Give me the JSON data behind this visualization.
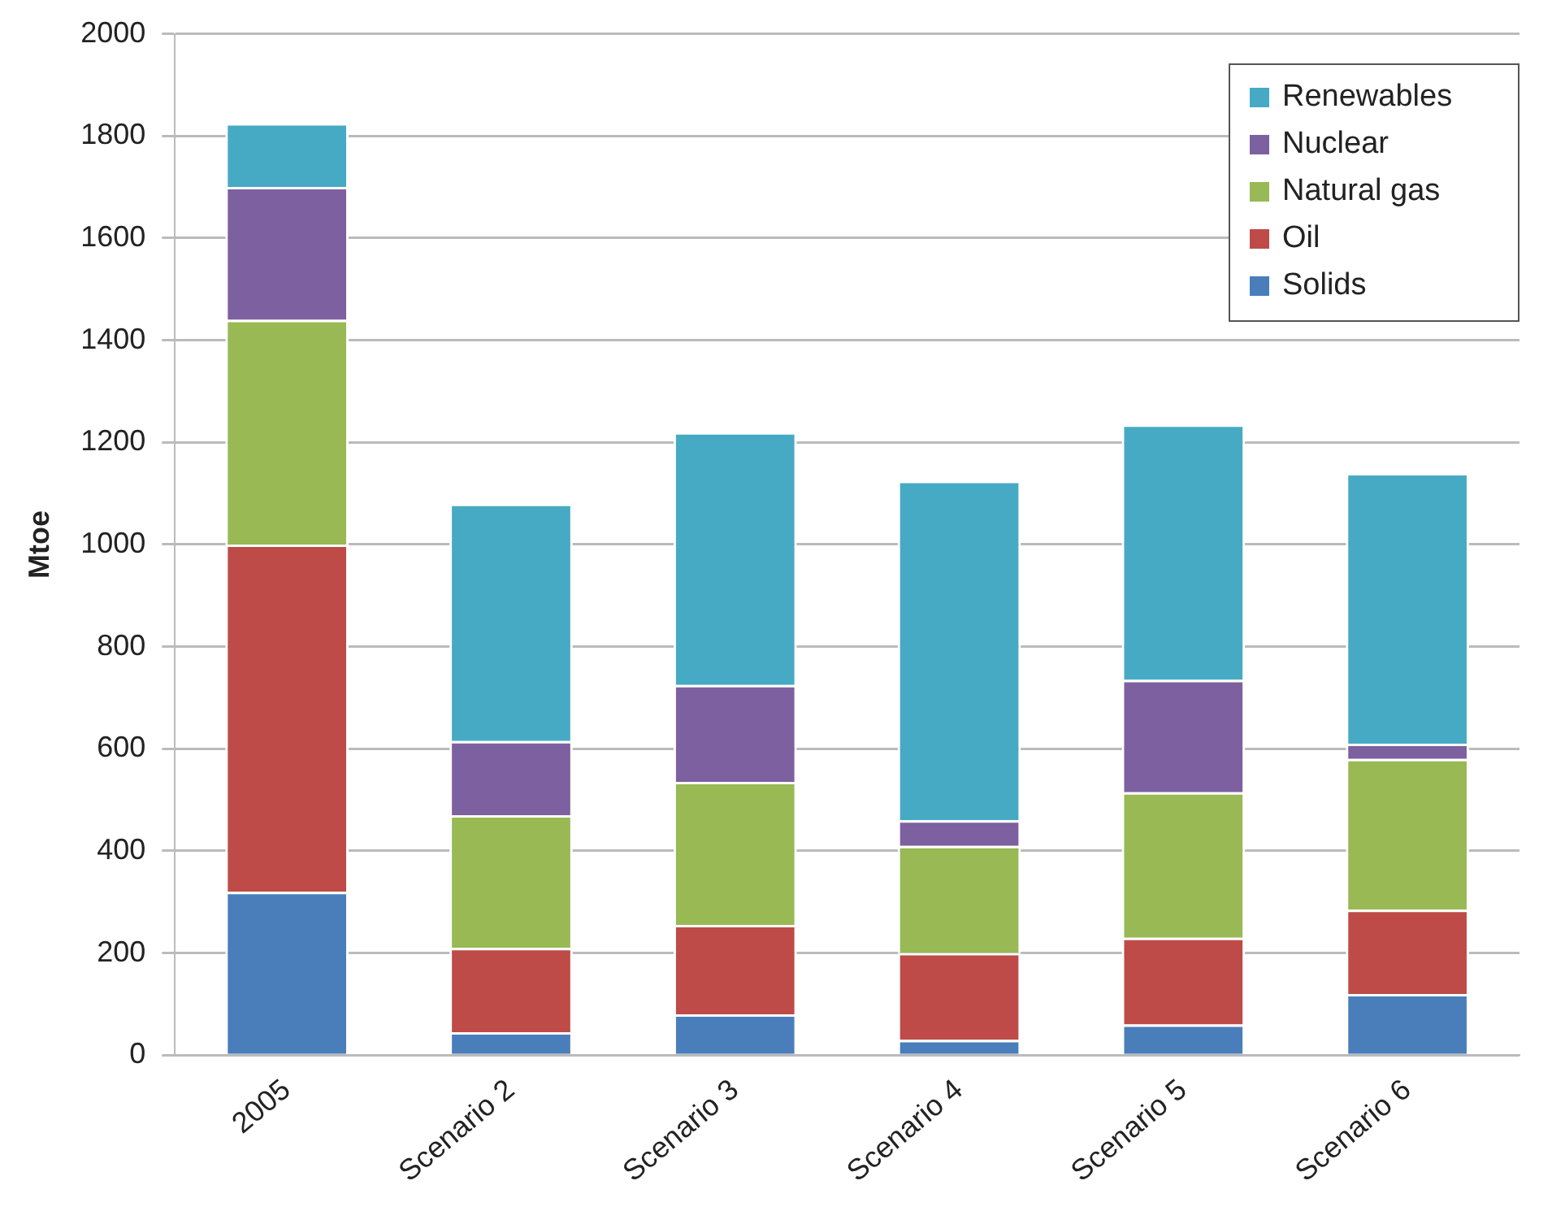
{
  "chart_data": {
    "type": "bar",
    "stacked": true,
    "ylabel": "Mtoe",
    "categories": [
      "2005",
      "Scenario 2",
      "Scenario 3",
      "Scenario 4",
      "Scenario 5",
      "Scenario 6"
    ],
    "series": [
      {
        "name": "Solids",
        "color": "#4a7ebb",
        "values": [
          320,
          45,
          80,
          30,
          60,
          120
        ]
      },
      {
        "name": "Oil",
        "color": "#be4b48",
        "values": [
          680,
          165,
          175,
          170,
          170,
          165
        ]
      },
      {
        "name": "Natural gas",
        "color": "#98b954",
        "values": [
          440,
          260,
          280,
          210,
          285,
          295
        ]
      },
      {
        "name": "Nuclear",
        "color": "#7d60a0",
        "values": [
          260,
          145,
          190,
          50,
          220,
          30
        ]
      },
      {
        "name": "Renewables",
        "color": "#46aac5",
        "values": [
          125,
          465,
          495,
          665,
          500,
          530
        ]
      }
    ],
    "ylim": [
      0,
      2000
    ],
    "yticks": [
      0,
      200,
      400,
      600,
      800,
      1000,
      1200,
      1400,
      1600,
      1800,
      2000
    ],
    "grid": "y",
    "legend": "top right"
  }
}
